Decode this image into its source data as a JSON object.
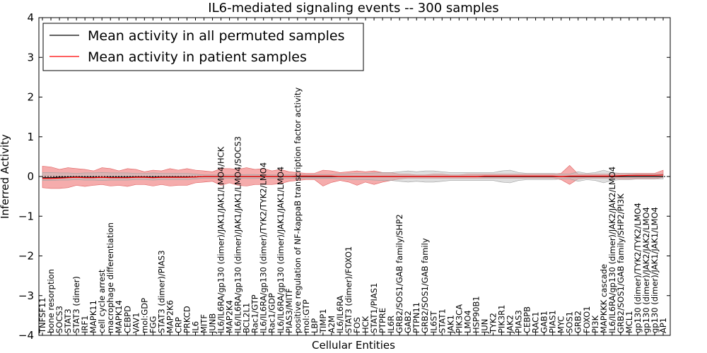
{
  "chart_data": {
    "type": "line",
    "title": "IL6-mediated signaling events -- 300 samples",
    "xlabel": "Cellular Entities",
    "ylabel": "Inferred Activity",
    "ylim": [
      -4,
      4
    ],
    "yticks": [
      -4,
      -3,
      -2,
      -1,
      0,
      1,
      2,
      3,
      4
    ],
    "legend_position": "top-left",
    "colors": {
      "permuted": "#000000",
      "patient": "#ff0000",
      "band_patient": "#f08080",
      "band_permuted": "#bdbdbd",
      "zero_line": "#000000"
    },
    "categories": [
      "TNFSF11",
      "bone resorption",
      "SOCS3",
      "STAT3",
      "STAT3 (dimer)",
      "IRF1",
      "MAPK11",
      "cell cycle arrest",
      "macrophage differentiation",
      "MAPK14",
      "CEBPD",
      "VAV1",
      "mol:GDP",
      "FGG",
      "STAT3 (dimer)/PIAS3",
      "MAP2K6",
      "CRP",
      "PRKCD",
      "IL6",
      "MITF",
      "JUNB",
      "IL6/IL6RA/gp130 (dimer)/JAK1/JAK1/LMO4/HCK",
      "MAP2K4",
      "IL6/IL6RA/gp130 (dimer)/JAK1/JAK1/LMO4/SOCS3",
      "BCL2L1",
      "Rac1/GTP",
      "IL6/IL6RA/gp130 (dimer)/TYK2/TYK2/LMO4",
      "Rac1/GDP",
      "IL6/IL6RA/gp130 (dimer)/JAK1/JAK1/LMO4",
      "PIAS3/MITF",
      "positive regulation of NF-kappaB transcription factor activity",
      "mol:GTP",
      "LBP",
      "TIMP1",
      "A2M",
      "IL6/IL6RA",
      "STAT3 (dimer)/FOXO1",
      "FOS",
      "HCK",
      "STAT1/PIAS1",
      "PTPRE",
      "IL6R",
      "GRB2/SOS1/GAB family/SHP2",
      "GAB2",
      "PTPN11",
      "GRB2/SOS1/GAB family",
      "IL6ST",
      "STAT1",
      "JAK1",
      "PIK3CA",
      "LMO4",
      "HSP90B1",
      "JUN",
      "TYK2",
      "PIK3R1",
      "JAK2",
      "PIAS3",
      "CEBPB",
      "RAC1",
      "GAB1",
      "PIAS1",
      "MYC",
      "SOS1",
      "GRB2",
      "FOXO1",
      "PI3K",
      "MAPKKK cascade",
      "IL6/IL6RA/gp130 (dimer)/JAK2/JAK2/LMO4",
      "GRB2/SOS1/GAB family/SHP2/PI3K",
      "MCL1",
      "gp130 (dimer)/TYK2/TYK2/LMO4",
      "gp130 (dimer)/JAK2/JAK2/LMO4",
      "gp130 (dimer)/JAK1/JAK1/LMO4",
      "AP1"
    ],
    "series": [
      {
        "name": "Mean activity in all permuted samples",
        "values": [
          -0.03,
          -0.03,
          -0.02,
          -0.02,
          -0.01,
          -0.02,
          -0.02,
          -0.02,
          -0.02,
          -0.02,
          -0.02,
          -0.01,
          -0.01,
          -0.02,
          -0.01,
          -0.01,
          -0.01,
          -0.01,
          -0.01,
          0,
          0,
          0,
          0,
          0,
          0,
          0,
          0,
          0,
          0,
          0,
          0,
          0,
          0,
          0,
          0,
          0,
          0,
          0,
          0,
          0,
          0,
          0,
          0,
          0,
          0,
          0,
          0,
          0,
          0,
          0,
          0,
          0,
          0,
          0,
          0,
          0,
          0,
          0,
          0,
          0,
          0,
          0,
          0,
          0,
          0,
          0,
          0,
          0,
          0,
          0,
          0,
          0,
          0,
          0
        ],
        "band_low": [
          -0.1,
          -0.1,
          -0.09,
          -0.09,
          -0.08,
          -0.09,
          -0.09,
          -0.1,
          -0.09,
          -0.09,
          -0.09,
          -0.08,
          -0.08,
          -0.09,
          -0.08,
          -0.08,
          -0.08,
          -0.08,
          -0.06,
          -0.04,
          -0.04,
          -0.04,
          -0.04,
          -0.04,
          -0.05,
          -0.05,
          -0.04,
          -0.04,
          -0.04,
          -0.04,
          -0.04,
          -0.04,
          -0.05,
          -0.05,
          -0.05,
          -0.06,
          -0.07,
          -0.08,
          -0.08,
          -0.09,
          -0.1,
          -0.1,
          -0.12,
          -0.14,
          -0.12,
          -0.14,
          -0.14,
          -0.12,
          -0.1,
          -0.1,
          -0.1,
          -0.1,
          -0.1,
          -0.1,
          -0.14,
          -0.16,
          -0.1,
          -0.08,
          -0.08,
          -0.08,
          -0.08,
          -0.06,
          -0.06,
          -0.12,
          -0.08,
          -0.1,
          -0.16,
          -0.1,
          -0.08,
          -0.08,
          -0.06,
          -0.06,
          -0.06,
          -0.06
        ],
        "band_high": [
          0.1,
          0.1,
          0.09,
          0.09,
          0.08,
          0.09,
          0.09,
          0.1,
          0.09,
          0.09,
          0.09,
          0.08,
          0.08,
          0.09,
          0.08,
          0.08,
          0.08,
          0.08,
          0.06,
          0.04,
          0.04,
          0.04,
          0.04,
          0.04,
          0.05,
          0.05,
          0.04,
          0.04,
          0.04,
          0.04,
          0.04,
          0.04,
          0.05,
          0.05,
          0.05,
          0.06,
          0.07,
          0.08,
          0.08,
          0.09,
          0.1,
          0.1,
          0.12,
          0.14,
          0.12,
          0.14,
          0.14,
          0.12,
          0.1,
          0.1,
          0.1,
          0.1,
          0.1,
          0.1,
          0.14,
          0.16,
          0.1,
          0.08,
          0.08,
          0.08,
          0.08,
          0.06,
          0.06,
          0.12,
          0.08,
          0.1,
          0.16,
          0.1,
          0.08,
          0.08,
          0.06,
          0.06,
          0.06,
          0.06
        ]
      },
      {
        "name": "Mean activity in patient samples",
        "values": [
          -0.05,
          -0.05,
          -0.04,
          -0.03,
          -0.02,
          -0.03,
          -0.03,
          -0.02,
          -0.03,
          -0.03,
          -0.03,
          -0.02,
          -0.02,
          -0.03,
          -0.02,
          -0.02,
          -0.02,
          -0.02,
          -0.01,
          0,
          0,
          0,
          0,
          0,
          0,
          0,
          0,
          0,
          0,
          0,
          0.01,
          0.01,
          0.01,
          0.01,
          0.01,
          0,
          0,
          0,
          0,
          0,
          0,
          0,
          0,
          0,
          0,
          0,
          0,
          0,
          0,
          0,
          0,
          0,
          0.01,
          0.01,
          0.01,
          0.01,
          0.01,
          0.01,
          0.01,
          0.01,
          0.01,
          0,
          0.01,
          0.01,
          0.01,
          0.01,
          0.01,
          0.01,
          0.02,
          0.03,
          0.03,
          0.03,
          0.03,
          0.04
        ],
        "band_low": [
          -0.28,
          -0.3,
          -0.3,
          -0.28,
          -0.22,
          -0.25,
          -0.22,
          -0.2,
          -0.24,
          -0.22,
          -0.25,
          -0.2,
          -0.2,
          -0.24,
          -0.2,
          -0.24,
          -0.22,
          -0.22,
          -0.16,
          -0.14,
          -0.12,
          -0.22,
          -0.16,
          -0.22,
          -0.24,
          -0.2,
          -0.2,
          -0.2,
          -0.18,
          -0.12,
          -0.1,
          -0.08,
          -0.08,
          -0.24,
          -0.15,
          -0.1,
          -0.14,
          -0.22,
          -0.14,
          -0.2,
          -0.14,
          -0.1,
          -0.06,
          -0.04,
          -0.04,
          -0.04,
          -0.04,
          -0.04,
          -0.04,
          -0.04,
          -0.04,
          -0.04,
          -0.04,
          -0.04,
          -0.04,
          -0.04,
          -0.04,
          -0.04,
          -0.04,
          -0.04,
          -0.04,
          -0.08,
          -0.2,
          -0.06,
          -0.04,
          -0.04,
          -0.04,
          -0.04,
          -0.06,
          -0.06,
          -0.06,
          -0.06,
          -0.06,
          -0.02
        ],
        "band_high": [
          0.26,
          0.24,
          0.18,
          0.22,
          0.2,
          0.18,
          0.14,
          0.22,
          0.2,
          0.14,
          0.2,
          0.18,
          0.12,
          0.16,
          0.14,
          0.2,
          0.16,
          0.2,
          0.16,
          0.14,
          0.12,
          0.2,
          0.2,
          0.18,
          0.22,
          0.18,
          0.2,
          0.14,
          0.18,
          0.12,
          0.1,
          0.08,
          0.08,
          0.16,
          0.14,
          0.1,
          0.12,
          0.14,
          0.12,
          0.14,
          0.1,
          0.1,
          0.06,
          0.06,
          0.04,
          0.04,
          0.06,
          0.06,
          0.04,
          0.04,
          0.06,
          0.06,
          0.06,
          0.06,
          0.06,
          0.06,
          0.06,
          0.06,
          0.06,
          0.06,
          0.06,
          0.08,
          0.28,
          0.06,
          0.06,
          0.06,
          0.06,
          0.06,
          0.08,
          0.08,
          0.08,
          0.08,
          0.08,
          0.16
        ]
      }
    ]
  }
}
